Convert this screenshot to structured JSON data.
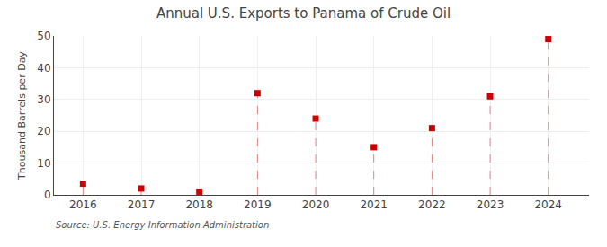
{
  "chart_data": {
    "type": "scatter",
    "title": "Annual U.S. Exports to Panama of Crude Oil",
    "ylabel": "Thousand Barrels per Day",
    "annotations": [
      "Source: U.S. Energy Information Administration"
    ],
    "x": [
      2016,
      2017,
      2018,
      2019,
      2020,
      2021,
      2022,
      2023,
      2024
    ],
    "values": [
      3.5,
      2.0,
      1.0,
      32.0,
      24.0,
      15.0,
      21.0,
      31.0,
      49.0
    ],
    "color": "#cc0000",
    "marker": "square",
    "line_style": "dashed",
    "xlim": [
      2015.5,
      2024.7
    ],
    "xticks": [
      2016,
      2017,
      2018,
      2019,
      2020,
      2021,
      2022,
      2023,
      2024
    ],
    "ylim": [
      0,
      50
    ],
    "yticks": [
      0,
      10,
      20,
      30,
      40,
      50
    ],
    "grid": true
  }
}
